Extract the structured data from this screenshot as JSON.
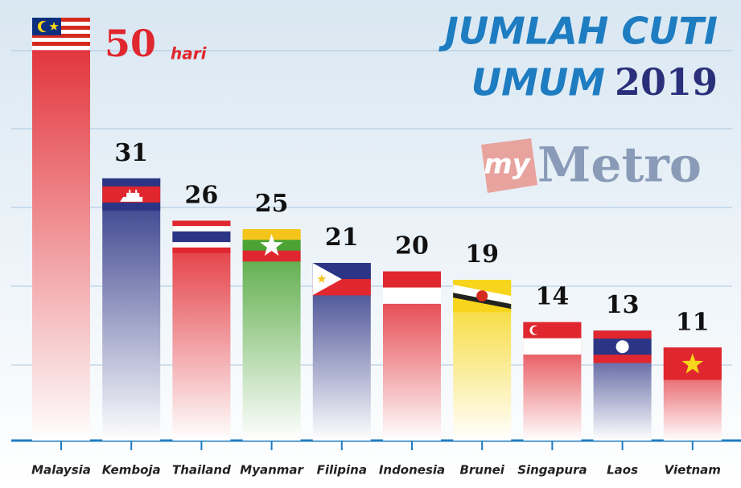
{
  "chart_data": {
    "type": "bar",
    "title": [
      "JUMLAH CUTI",
      "UMUM"
    ],
    "year": "2019",
    "logo": [
      "my",
      "Metro"
    ],
    "unit": "hari",
    "categories": [
      "Malaysia",
      "Kemboja",
      "Thailand",
      "Myanmar",
      "Filipina",
      "Indonesia",
      "Brunei",
      "Singapura",
      "Laos",
      "Vietnam"
    ],
    "values": [
      50,
      31,
      26,
      25,
      21,
      20,
      19,
      14,
      13,
      11
    ],
    "colors": [
      "#e0262e",
      "#2c3585",
      "#e0262e",
      "#4aa334",
      "#2c3585",
      "#e0262e",
      "#f6d51c",
      "#e0262e",
      "#2c3585",
      "#e0262e"
    ],
    "ylim": [
      0,
      50
    ]
  }
}
